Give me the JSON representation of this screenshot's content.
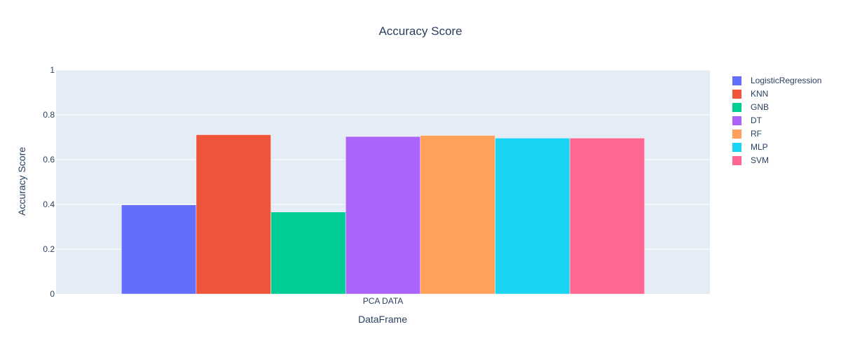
{
  "chart_data": {
    "type": "bar",
    "title": "Accuracy Score",
    "xlabel": "DataFrame",
    "ylabel": "Accuracy Score",
    "categories": [
      "PCA DATA"
    ],
    "ylim": [
      0,
      1
    ],
    "yticks": [
      0,
      0.2,
      0.4,
      0.6,
      0.8,
      1
    ],
    "ytick_labels": [
      "0",
      "0.2",
      "0.4",
      "0.6",
      "0.8",
      "1"
    ],
    "grid": true,
    "legend_position": "right",
    "plot_background": "#e5ecf6",
    "series": [
      {
        "name": "LogisticRegression",
        "values": [
          0.398
        ],
        "color": "#636efa"
      },
      {
        "name": "KNN",
        "values": [
          0.711
        ],
        "color": "#ef553b"
      },
      {
        "name": "GNB",
        "values": [
          0.366
        ],
        "color": "#00cc96"
      },
      {
        "name": "DT",
        "values": [
          0.703
        ],
        "color": "#ab63fa"
      },
      {
        "name": "RF",
        "values": [
          0.708
        ],
        "color": "#ffa15a"
      },
      {
        "name": "MLP",
        "values": [
          0.696
        ],
        "color": "#19d3f3"
      },
      {
        "name": "SVM",
        "values": [
          0.696
        ],
        "color": "#ff6692"
      }
    ]
  }
}
